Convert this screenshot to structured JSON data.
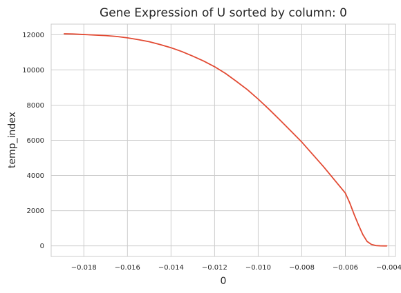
{
  "chart_data": {
    "type": "line",
    "title": "Gene Expression of U sorted by column: 0",
    "xlabel": "0",
    "ylabel": "temp_index",
    "xlim": [
      -0.0195,
      -0.0037
    ],
    "ylim": [
      -600,
      12600
    ],
    "xticks": [
      -0.018,
      -0.016,
      -0.014,
      -0.012,
      -0.01,
      -0.008,
      -0.006,
      -0.004
    ],
    "xtick_labels": [
      "−0.018",
      "−0.016",
      "−0.014",
      "−0.012",
      "−0.010",
      "−0.008",
      "−0.006",
      "−0.004"
    ],
    "yticks": [
      0,
      2000,
      4000,
      6000,
      8000,
      10000,
      12000
    ],
    "ytick_labels": [
      "0",
      "2000",
      "4000",
      "6000",
      "8000",
      "10000",
      "12000"
    ],
    "grid": true,
    "series": [
      {
        "color": "#e24a33",
        "x": [
          -0.0189,
          -0.0185,
          -0.018,
          -0.0175,
          -0.017,
          -0.0165,
          -0.016,
          -0.0155,
          -0.015,
          -0.0145,
          -0.014,
          -0.0135,
          -0.013,
          -0.0125,
          -0.012,
          -0.0115,
          -0.011,
          -0.0105,
          -0.01,
          -0.0095,
          -0.009,
          -0.0085,
          -0.008,
          -0.0075,
          -0.007,
          -0.0065,
          -0.006,
          -0.0058,
          -0.0056,
          -0.0054,
          -0.0052,
          -0.005,
          -0.0048,
          -0.0046,
          -0.0044,
          -0.0042,
          -0.0041
        ],
        "y": [
          12050,
          12040,
          12010,
          11980,
          11950,
          11900,
          11820,
          11720,
          11600,
          11440,
          11260,
          11040,
          10780,
          10500,
          10180,
          9800,
          9350,
          8880,
          8340,
          7760,
          7150,
          6530,
          5900,
          5200,
          4500,
          3750,
          3000,
          2450,
          1800,
          1200,
          650,
          250,
          80,
          20,
          5,
          0,
          0
        ]
      }
    ]
  }
}
